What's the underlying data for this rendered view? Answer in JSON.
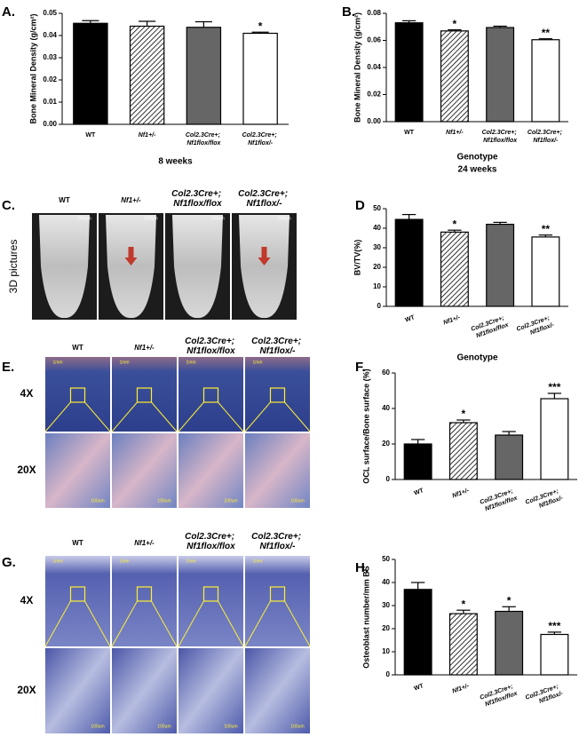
{
  "chart_data": [
    {
      "type": "bar",
      "panel": "A.",
      "ylabel": "Bone Mineral Density (g/cm²)",
      "xlabel": "8 weeks",
      "categories": [
        "WT",
        "Nf1+/-",
        "Col2.3Cre+; Nf1flox/flox",
        "Col2.3Cre+; Nf1flox/-"
      ],
      "values": [
        0.0455,
        0.0442,
        0.0437,
        0.041
      ],
      "errors": [
        0.0012,
        0.0022,
        0.0025,
        0.0005
      ],
      "annotations": [
        null,
        null,
        null,
        "*"
      ],
      "colors": [
        "#000000",
        "#ffffff",
        "#666666",
        "#ffffff"
      ],
      "hatched": [
        false,
        true,
        false,
        false
      ],
      "ylim": [
        0,
        0.05
      ],
      "yticks": [
        {
          "value": 0,
          "label": "0.00"
        },
        {
          "value": 0.01,
          "label": "0.01"
        },
        {
          "value": 0.02,
          "label": "0.02"
        },
        {
          "value": 0.03,
          "label": "0.03"
        },
        {
          "value": 0.04,
          "label": "0.04"
        },
        {
          "value": 0.05,
          "label": "0.05"
        }
      ]
    },
    {
      "type": "bar",
      "panel": "B.",
      "ylabel": "Bone Mineral Density (g/cm²)",
      "xlabel": "Genotype",
      "subtitle": "24 weeks",
      "categories": [
        "WT",
        "Nf1+/-",
        "Col2.3Cre+; Nf1flox/flox",
        "Col2.3Cre+; Nf1flox/-"
      ],
      "values": [
        0.073,
        0.067,
        0.0695,
        0.0605
      ],
      "errors": [
        0.0015,
        0.0008,
        0.001,
        0.0007
      ],
      "annotations": [
        null,
        "*",
        null,
        "**"
      ],
      "colors": [
        "#000000",
        "#ffffff",
        "#666666",
        "#ffffff"
      ],
      "hatched": [
        false,
        true,
        false,
        false
      ],
      "ylim": [
        0,
        0.08
      ],
      "yticks": [
        {
          "value": 0,
          "label": "0.00"
        },
        {
          "value": 0.02,
          "label": "0.02"
        },
        {
          "value": 0.04,
          "label": "0.04"
        },
        {
          "value": 0.06,
          "label": "0.06"
        },
        {
          "value": 0.08,
          "label": "0.08"
        }
      ]
    },
    {
      "type": "bar",
      "panel": "D",
      "ylabel": "BV/TV(%)",
      "xlabel": "Genotype",
      "categories": [
        "WT",
        "Nf1+/-",
        "Col2.3Cre+; Nf1flox/flox",
        "Col2.3Cre+; Nf1flox/-"
      ],
      "values": [
        44.5,
        38,
        42,
        35.5
      ],
      "errors": [
        2.5,
        1,
        1,
        1
      ],
      "annotations": [
        null,
        "*",
        null,
        "**"
      ],
      "colors": [
        "#000000",
        "#ffffff",
        "#666666",
        "#ffffff"
      ],
      "hatched": [
        false,
        true,
        false,
        false
      ],
      "ylim": [
        0,
        50
      ],
      "yticks": [
        0,
        10,
        20,
        30,
        40,
        50
      ]
    },
    {
      "type": "bar",
      "panel": "F.",
      "ylabel": "OCL surface/Bone surface (%)",
      "categories": [
        "WT",
        "Nf1+/-",
        "Col2.3Cre+; Nf1flox/flox",
        "Col2.3Cre+; Nf1flox/-"
      ],
      "values": [
        20,
        32,
        25,
        45.5
      ],
      "errors": [
        2.5,
        1.5,
        2,
        3
      ],
      "annotations": [
        null,
        "*",
        null,
        "***"
      ],
      "colors": [
        "#000000",
        "#ffffff",
        "#666666",
        "#ffffff"
      ],
      "hatched": [
        false,
        true,
        false,
        false
      ],
      "ylim": [
        0,
        60
      ],
      "yticks": [
        0,
        20,
        40,
        60
      ]
    },
    {
      "type": "bar",
      "panel": "H.",
      "ylabel": "Osteoblast number/mm BS",
      "categories": [
        "WT",
        "Nf1+/-",
        "Col2.3Cre+; Nf1flox/flox",
        "Col2.3Cre+; Nf1flox/-"
      ],
      "values": [
        37,
        26.5,
        27.5,
        17.5
      ],
      "errors": [
        3,
        1.5,
        2,
        1
      ],
      "annotations": [
        null,
        "*",
        "*",
        "***"
      ],
      "colors": [
        "#000000",
        "#ffffff",
        "#666666",
        "#ffffff"
      ],
      "hatched": [
        false,
        true,
        false,
        false
      ],
      "ylim": [
        0,
        50
      ],
      "yticks": [
        0,
        10,
        20,
        30,
        40,
        50
      ]
    }
  ],
  "image_panels": [
    {
      "panel": "C.",
      "row_labels": [
        "3D pictures"
      ],
      "columns": [
        "WT",
        "Nf1+/-",
        "Col2.3Cre+; Nf1flox/flox",
        "Col2.3Cre+; Nf1flox/-"
      ],
      "scale_labels": [
        "100um"
      ]
    },
    {
      "panel": "E.",
      "row_labels": [
        "4X",
        "20X"
      ],
      "columns": [
        "WT",
        "Nf1+/-",
        "Col2.3Cre+; Nf1flox/flox",
        "Col2.3Cre+; Nf1flox/-"
      ],
      "scale_labels": [
        "1mm",
        "100um"
      ]
    },
    {
      "panel": "G.",
      "row_labels": [
        "4X",
        "20X"
      ],
      "columns": [
        "WT",
        "Nf1+/-",
        "Col2.3Cre+; Nf1flox/flox",
        "Col2.3Cre+; Nf1flox/-"
      ],
      "scale_labels": [
        "1mm",
        "100um"
      ]
    }
  ]
}
